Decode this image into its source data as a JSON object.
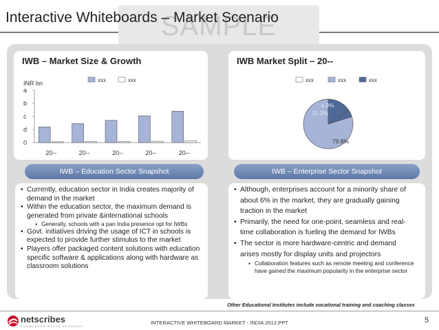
{
  "slide": {
    "title": "Interactive Whiteboards – Market Scenario",
    "watermark": "SAMPLE",
    "footnote": "Other Educational Institutes include vocational training and coaching classes",
    "footer": "INTERACTIVE WHITEBOARD MARKET - INDIA 2012.PPT",
    "page_number": "5"
  },
  "brand": {
    "name": "netscribes",
    "tagline": "KNOWLEDGE MEETS BUSINESS",
    "accent": "#c8102e"
  },
  "colors": {
    "series_a": "#a6b4d8",
    "series_b": "#ffffff",
    "series_dark": "#4f6a99",
    "pill": "#6f86b0"
  },
  "left_card": {
    "title": "IWB – Market Size & Growth",
    "pill": "IWB – Education Sector Snapshot",
    "bullets": [
      {
        "text": "Currently, education sector in India creates majority of demand in the market",
        "sub": false
      },
      {
        "text": "Within the education sector, the maximum demand is generated from private &international schools",
        "sub": false
      },
      {
        "text": "Generally, schools with a pan India presence opt for IWBs",
        "sub": true
      },
      {
        "text": "Govt. initiatives driving the usage of ICT in schools is expected to provide further stimulus to the market",
        "sub": false
      },
      {
        "text": "Players offer packaged content solutions with education specific software & applications along with hardware as classroom solutions",
        "sub": false
      }
    ]
  },
  "right_card": {
    "title": "IWB Market Split – 20--",
    "pill": "IWB – Enterprise Sector Snapshot",
    "bullets": [
      {
        "text": "Although, enterprises account for a minority share of about 6% in the market, they are gradually gaining traction in the market",
        "sub": false
      },
      {
        "text": "Primarily, the need for one-point, seamless and real-time collaboration is fueling the demand for IWBs",
        "sub": false
      },
      {
        "text": "The sector is more hardware-centric and demand arises mostly for display units and projectors",
        "sub": false
      },
      {
        "text": "Collaboration features such as remote meeting and conference have gained the maximum popularity in the enterprise sector",
        "sub": true
      }
    ]
  },
  "chart_data": [
    {
      "type": "bar",
      "title": "",
      "ylabel": "INR bn",
      "xlabel": "",
      "categories": [
        "20--",
        "20--",
        "20--",
        "20--",
        "20--"
      ],
      "y_tick_labels": [
        "0",
        "d",
        "c",
        "b",
        "a"
      ],
      "ylim": [
        0,
        4
      ],
      "legend_position": "top",
      "series": [
        {
          "name": "xxx",
          "values": [
            1.2,
            1.45,
            1.7,
            2.05,
            2.4
          ]
        },
        {
          "name": "xxx",
          "values": [
            0.06,
            0.07,
            0.08,
            0.1,
            0.12
          ]
        }
      ]
    },
    {
      "type": "pie",
      "title": "IWB Market Split – 20--",
      "legend_position": "top",
      "slices": [
        {
          "name": "xxx",
          "value": 79.8,
          "label": "79.8%"
        },
        {
          "name": "xxx",
          "value": 15.3,
          "label": "15.3%"
        },
        {
          "name": "xxx",
          "value": 4.9,
          "label": "4.9%"
        }
      ]
    }
  ]
}
